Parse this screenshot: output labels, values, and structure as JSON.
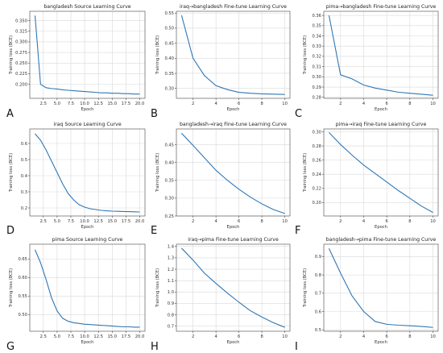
{
  "colors": {
    "line": "#2f77b4"
  },
  "chart_data": [
    {
      "type": "line",
      "letter": "A",
      "title": "bangladesh Source Learning Curve",
      "xlabel": "Epoch",
      "ylabel": "Training loss (BCE)",
      "x": [
        1,
        2,
        3,
        4,
        5,
        6,
        7,
        8,
        9,
        10,
        11,
        12,
        13,
        14,
        15,
        16,
        17,
        18,
        19,
        20
      ],
      "y": [
        0.362,
        0.2,
        0.192,
        0.19,
        0.189,
        0.187,
        0.186,
        0.185,
        0.184,
        0.183,
        0.182,
        0.181,
        0.18,
        0.18,
        0.179,
        0.179,
        0.178,
        0.178,
        0.177,
        0.177
      ],
      "xlim": [
        0.05,
        20.95
      ],
      "ylim": [
        0.167,
        0.372
      ],
      "xticks": [
        2.5,
        5.0,
        7.5,
        10.0,
        12.5,
        15.0,
        17.5,
        20.0
      ],
      "xtick_labels": [
        "2.5",
        "5.0",
        "7.5",
        "10.0",
        "12.5",
        "15.0",
        "17.5",
        "20.0"
      ],
      "yticks": [
        0.2,
        0.225,
        0.25,
        0.275,
        0.3,
        0.325,
        0.35
      ],
      "ytick_labels": [
        "0.200",
        "0.225",
        "0.250",
        "0.275",
        "0.300",
        "0.325",
        "0.350"
      ],
      "grid": true
    },
    {
      "type": "line",
      "letter": "B",
      "title": "iraq→bangladesh Fine-tune Learning Curve",
      "xlabel": "Epoch",
      "ylabel": "Training loss (BCE)",
      "x": [
        1,
        2,
        3,
        4,
        5,
        6,
        7,
        8,
        9,
        10
      ],
      "y": [
        0.543,
        0.4,
        0.342,
        0.309,
        0.296,
        0.287,
        0.284,
        0.282,
        0.281,
        0.28
      ],
      "xlim": [
        0.55,
        10.45
      ],
      "ylim": [
        0.267,
        0.556
      ],
      "xticks": [
        2,
        4,
        6,
        8,
        10
      ],
      "xtick_labels": [
        "2",
        "4",
        "6",
        "8",
        "10"
      ],
      "yticks": [
        0.3,
        0.35,
        0.4,
        0.45,
        0.5,
        0.55
      ],
      "ytick_labels": [
        "0.30",
        "0.35",
        "0.40",
        "0.45",
        "0.50",
        "0.55"
      ],
      "grid": true
    },
    {
      "type": "line",
      "letter": "C",
      "title": "pima→bangladesh Fine-tune Learning Curve",
      "xlabel": "Epoch",
      "ylabel": "Training loss (BCE)",
      "x": [
        1,
        2,
        3,
        4,
        5,
        6,
        7,
        8,
        9,
        10
      ],
      "y": [
        0.36,
        0.302,
        0.298,
        0.292,
        0.289,
        0.287,
        0.285,
        0.284,
        0.283,
        0.282
      ],
      "xlim": [
        0.55,
        10.45
      ],
      "ylim": [
        0.279,
        0.364
      ],
      "xticks": [
        2,
        4,
        6,
        8,
        10
      ],
      "xtick_labels": [
        "2",
        "4",
        "6",
        "8",
        "10"
      ],
      "yticks": [
        0.28,
        0.29,
        0.3,
        0.31,
        0.32,
        0.33,
        0.34,
        0.35,
        0.36
      ],
      "ytick_labels": [
        "0.28",
        "0.29",
        "0.30",
        "0.31",
        "0.32",
        "0.33",
        "0.34",
        "0.35",
        "0.36"
      ],
      "grid": true
    },
    {
      "type": "line",
      "letter": "D",
      "title": "iraq Source Learning Curve",
      "xlabel": "Epoch",
      "ylabel": "Training loss (BCE)",
      "x": [
        1,
        2,
        3,
        4,
        5,
        6,
        7,
        8,
        9,
        10,
        11,
        12,
        13,
        14,
        15,
        16,
        17,
        18,
        19,
        20
      ],
      "y": [
        0.66,
        0.62,
        0.56,
        0.49,
        0.42,
        0.35,
        0.29,
        0.25,
        0.22,
        0.205,
        0.195,
        0.19,
        0.185,
        0.182,
        0.18,
        0.179,
        0.178,
        0.177,
        0.176,
        0.175
      ],
      "xlim": [
        0.05,
        20.95
      ],
      "ylim": [
        0.15,
        0.69
      ],
      "xticks": [
        2.5,
        5.0,
        7.5,
        10.0,
        12.5,
        15.0,
        17.5,
        20.0
      ],
      "xtick_labels": [
        "2.5",
        "5.0",
        "7.5",
        "10.0",
        "12.5",
        "15.0",
        "17.5",
        "20.0"
      ],
      "yticks": [
        0.2,
        0.3,
        0.4,
        0.5,
        0.6
      ],
      "ytick_labels": [
        "0.2",
        "0.3",
        "0.4",
        "0.5",
        "0.6"
      ],
      "grid": true
    },
    {
      "type": "line",
      "letter": "E",
      "title": "bangladesh→iraq Fine-tune Learning Curve",
      "xlabel": "Epoch",
      "ylabel": "Training loss (BCE)",
      "x": [
        1,
        2,
        3,
        4,
        5,
        6,
        7,
        8,
        9,
        10
      ],
      "y": [
        0.482,
        0.448,
        0.413,
        0.378,
        0.35,
        0.325,
        0.303,
        0.284,
        0.268,
        0.257
      ],
      "xlim": [
        0.55,
        10.45
      ],
      "ylim": [
        0.25,
        0.494
      ],
      "xticks": [
        2,
        4,
        6,
        8,
        10
      ],
      "xtick_labels": [
        "2",
        "4",
        "6",
        "8",
        "10"
      ],
      "yticks": [
        0.25,
        0.3,
        0.35,
        0.4,
        0.45
      ],
      "ytick_labels": [
        "0.25",
        "0.30",
        "0.35",
        "0.40",
        "0.45"
      ],
      "grid": true
    },
    {
      "type": "line",
      "letter": "F",
      "title": "pima→iraq Fine-tune Learning Curve",
      "xlabel": "Epoch",
      "ylabel": "Training loss (BCE)",
      "x": [
        1,
        2,
        3,
        4,
        5,
        6,
        7,
        8,
        9,
        10
      ],
      "y": [
        0.299,
        0.282,
        0.267,
        0.253,
        0.241,
        0.229,
        0.217,
        0.206,
        0.195,
        0.186
      ],
      "xlim": [
        0.55,
        10.45
      ],
      "ylim": [
        0.181,
        0.304
      ],
      "xticks": [
        2,
        4,
        6,
        8,
        10
      ],
      "xtick_labels": [
        "2",
        "4",
        "6",
        "8",
        "10"
      ],
      "yticks": [
        0.2,
        0.22,
        0.24,
        0.26,
        0.28,
        0.3
      ],
      "ytick_labels": [
        "0.20",
        "0.22",
        "0.24",
        "0.26",
        "0.28",
        "0.30"
      ],
      "grid": true
    },
    {
      "type": "line",
      "letter": "G",
      "title": "pima Source Learning Curve",
      "xlabel": "Epoch",
      "ylabel": "Training loss (BCE)",
      "x": [
        1,
        2,
        3,
        4,
        5,
        6,
        7,
        8,
        9,
        10,
        11,
        12,
        13,
        14,
        15,
        16,
        17,
        18,
        19,
        20
      ],
      "y": [
        0.675,
        0.64,
        0.595,
        0.545,
        0.51,
        0.49,
        0.482,
        0.478,
        0.476,
        0.474,
        0.473,
        0.472,
        0.471,
        0.47,
        0.469,
        0.468,
        0.467,
        0.467,
        0.466,
        0.466
      ],
      "xlim": [
        0.05,
        20.95
      ],
      "ylim": [
        0.455,
        0.69
      ],
      "xticks": [
        2.5,
        5.0,
        7.5,
        10.0,
        12.5,
        15.0,
        17.5,
        20.0
      ],
      "xtick_labels": [
        "2.5",
        "5.0",
        "7.5",
        "10.0",
        "12.5",
        "15.0",
        "17.5",
        "20.0"
      ],
      "yticks": [
        0.5,
        0.55,
        0.6,
        0.65
      ],
      "ytick_labels": [
        "0.50",
        "0.55",
        "0.60",
        "0.65"
      ],
      "grid": true
    },
    {
      "type": "line",
      "letter": "H",
      "title": "iraq→pima Fine-tune Learning Curve",
      "xlabel": "Epoch",
      "ylabel": "Training loss (BCE)",
      "x": [
        1,
        2,
        3,
        4,
        5,
        6,
        7,
        8,
        9,
        10
      ],
      "y": [
        1.385,
        1.28,
        1.165,
        1.075,
        0.99,
        0.91,
        0.835,
        0.78,
        0.73,
        0.69
      ],
      "xlim": [
        0.55,
        10.45
      ],
      "ylim": [
        0.655,
        1.42
      ],
      "xticks": [
        2,
        4,
        6,
        8,
        10
      ],
      "xtick_labels": [
        "2",
        "4",
        "6",
        "8",
        "10"
      ],
      "yticks": [
        0.7,
        0.8,
        0.9,
        1.0,
        1.1,
        1.2,
        1.3,
        1.4
      ],
      "ytick_labels": [
        "0.7",
        "0.8",
        "0.9",
        "1.0",
        "1.1",
        "1.2",
        "1.3",
        "1.4"
      ],
      "grid": true
    },
    {
      "type": "line",
      "letter": "I",
      "title": "bangladesh→pima Fine-tune Learning Curve",
      "xlabel": "Epoch",
      "ylabel": "Training loss (BCE)",
      "x": [
        1,
        2,
        3,
        4,
        5,
        6,
        7,
        8,
        9,
        10
      ],
      "y": [
        0.945,
        0.81,
        0.685,
        0.6,
        0.545,
        0.53,
        0.525,
        0.522,
        0.518,
        0.513
      ],
      "xlim": [
        0.55,
        10.45
      ],
      "ylim": [
        0.492,
        0.968
      ],
      "xticks": [
        2,
        4,
        6,
        8,
        10
      ],
      "xtick_labels": [
        "2",
        "4",
        "6",
        "8",
        "10"
      ],
      "yticks": [
        0.5,
        0.6,
        0.7,
        0.8,
        0.9
      ],
      "ytick_labels": [
        "0.5",
        "0.6",
        "0.7",
        "0.8",
        "0.9"
      ],
      "grid": true
    }
  ]
}
